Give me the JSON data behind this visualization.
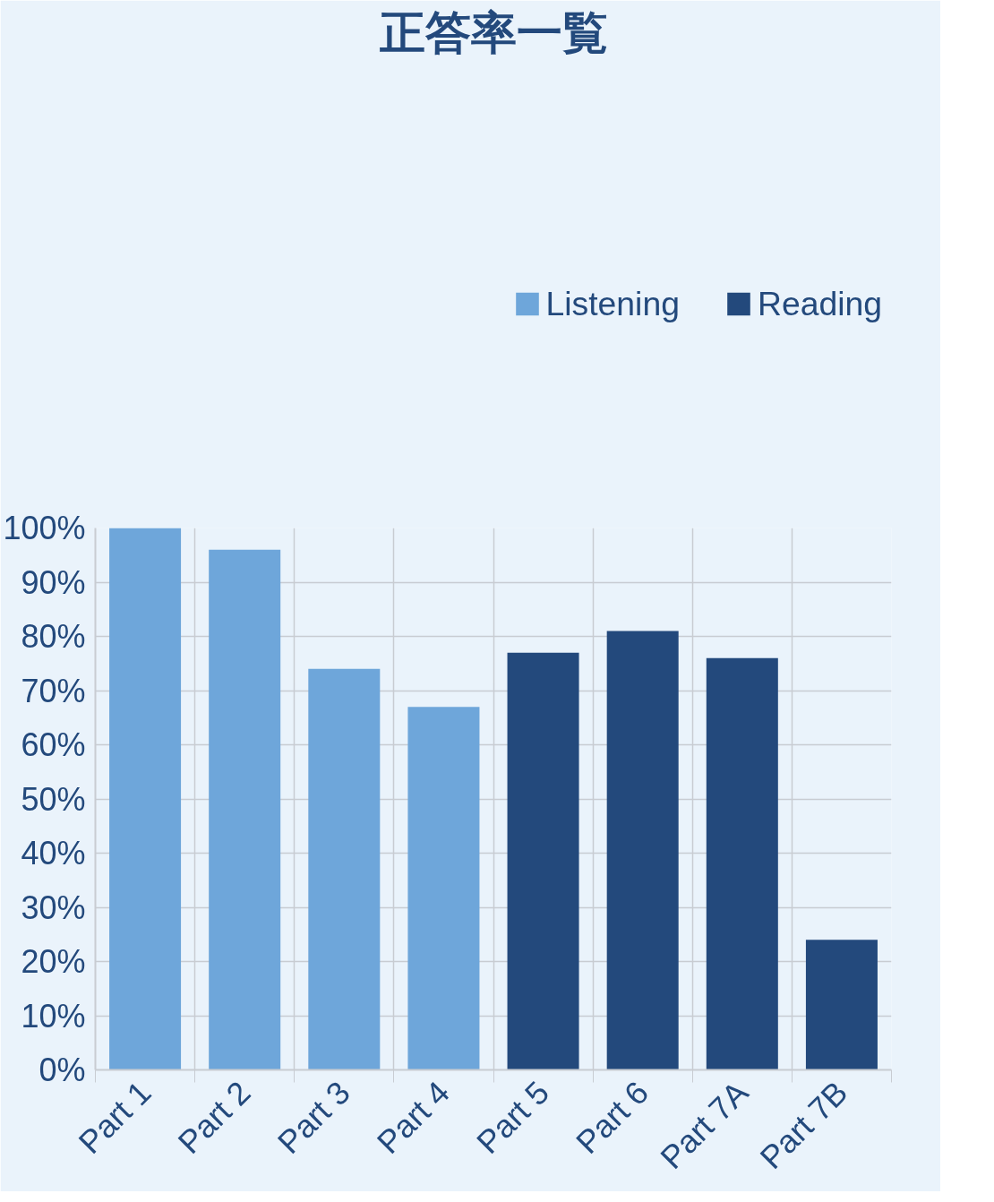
{
  "chart_data": {
    "type": "bar",
    "title": "正答率一覧",
    "categories": [
      "Part 1",
      "Part 2",
      "Part 3",
      "Part 4",
      "Part 5",
      "Part 6",
      "Part 7A",
      "Part 7B"
    ],
    "series": [
      {
        "name": "Listening",
        "color": "#6ea6da",
        "values": [
          100,
          96,
          74,
          67,
          null,
          null,
          null,
          null
        ]
      },
      {
        "name": "Reading",
        "color": "#23497c",
        "values": [
          null,
          null,
          null,
          null,
          77,
          81,
          76,
          24
        ]
      }
    ],
    "ylim": [
      0,
      100
    ],
    "yticks": [
      {
        "value": 0,
        "label": "0%"
      },
      {
        "value": 10,
        "label": "10%"
      },
      {
        "value": 20,
        "label": "20%"
      },
      {
        "value": 30,
        "label": "30%"
      },
      {
        "value": 40,
        "label": "40%"
      },
      {
        "value": 50,
        "label": "50%"
      },
      {
        "value": 60,
        "label": "60%"
      },
      {
        "value": 70,
        "label": "70%"
      },
      {
        "value": 80,
        "label": "80%"
      },
      {
        "value": 90,
        "label": "90%"
      },
      {
        "value": 100,
        "label": "100%"
      }
    ],
    "grid": true,
    "legend": "top right"
  }
}
